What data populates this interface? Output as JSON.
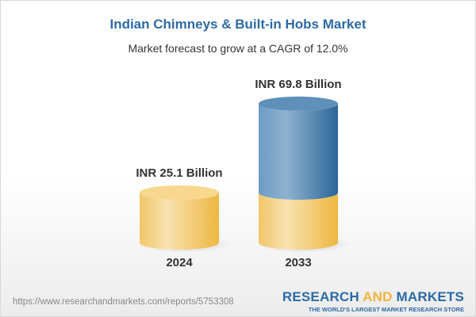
{
  "header": {
    "title": "Indian Chimneys & Built-in Hobs Market",
    "subtitle": "Market forecast to grow at a CAGR of 12.0%"
  },
  "chart_data": {
    "type": "bar",
    "style": "3d-cylinder",
    "categories": [
      "2024",
      "2033"
    ],
    "values": [
      25.1,
      69.8
    ],
    "data_labels": [
      "INR 25.1 Billion",
      "INR 69.8 Billion"
    ],
    "unit": "INR Billion",
    "cagr": "12.0%",
    "colors": {
      "base": "#f2c15a",
      "growth": "#3f78a8"
    }
  },
  "footer": {
    "url": "https://www.researchandmarkets.com/reports/5753308",
    "logo_part1": "RESEARCH ",
    "logo_part2": "AND",
    "logo_part3": " MARKETS",
    "tagline": "THE WORLD'S LARGEST MARKET RESEARCH STORE"
  }
}
